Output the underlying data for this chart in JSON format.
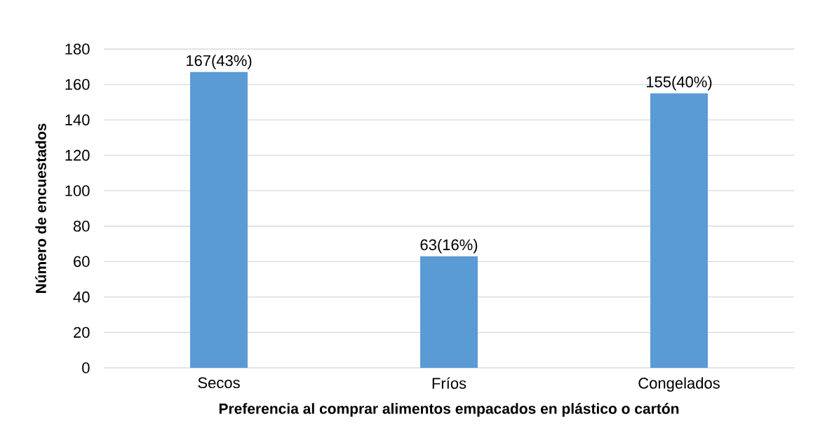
{
  "chart_data": {
    "type": "bar",
    "xlabel": "Preferencia al comprar alimentos empacados en plástico o cartón",
    "ylabel": "Número de encuestados",
    "categories": [
      "Secos",
      "Fríos",
      "Congelados"
    ],
    "values": [
      167,
      63,
      155
    ],
    "value_labels": [
      "167(43%)",
      "63(16%)",
      "155(40%)"
    ],
    "color": "#5b9bd5",
    "ylim": [
      0,
      180
    ],
    "yticks": [
      0,
      20,
      40,
      60,
      80,
      100,
      120,
      140,
      160,
      180
    ],
    "grid": "y"
  }
}
